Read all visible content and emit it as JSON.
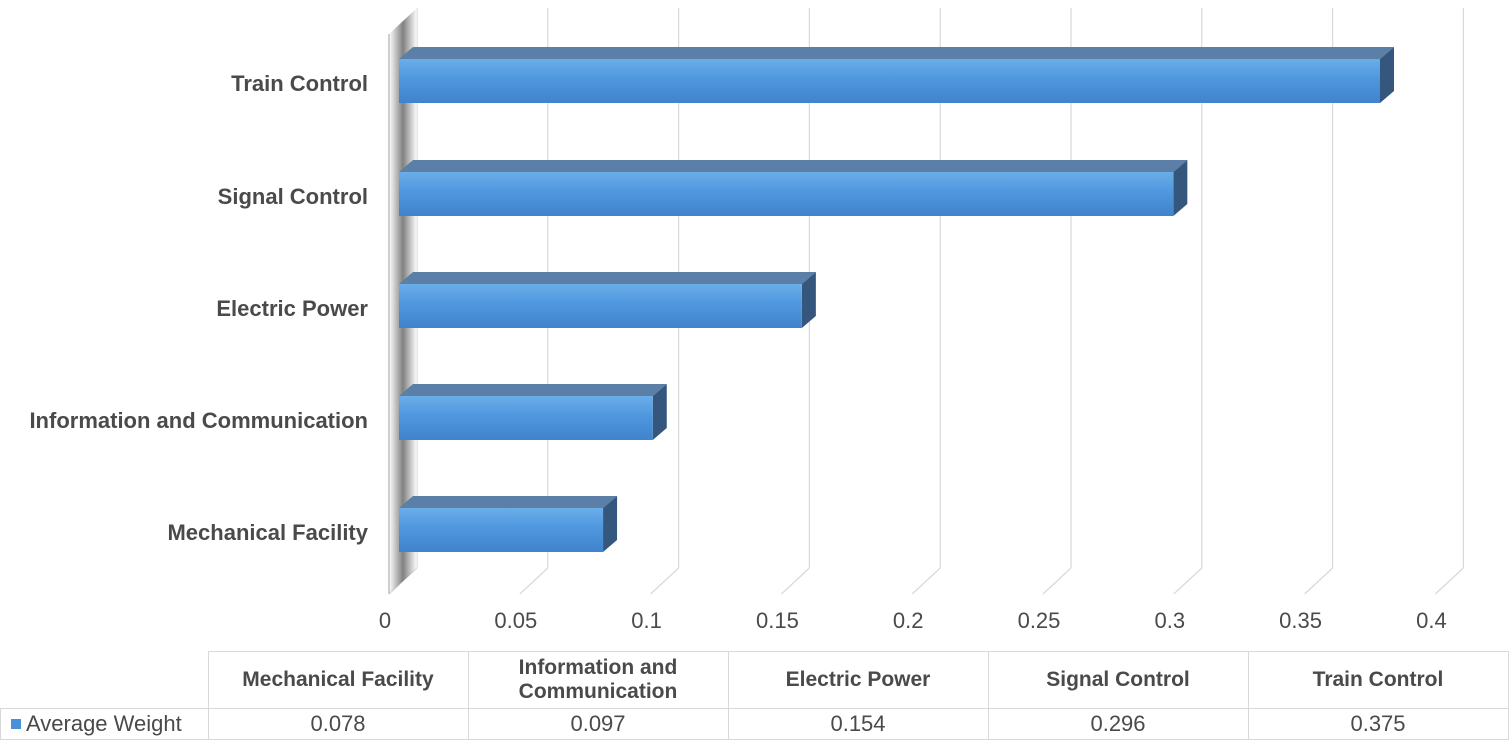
{
  "chart_data": {
    "type": "bar",
    "orientation": "horizontal",
    "three_d": true,
    "categories": [
      "Mechanical Facility",
      "Information and Communication",
      "Electric Power",
      "Signal Control",
      "Train Control"
    ],
    "series": [
      {
        "name": "Average Weight",
        "values": [
          0.078,
          0.097,
          0.154,
          0.296,
          0.375
        ],
        "color": "#4a90d9"
      }
    ],
    "value_labels": [
      "0.078",
      "0.097",
      "0.154",
      "0.296",
      "0.375"
    ],
    "xticks": [
      "0",
      "0.05",
      "0.1",
      "0.15",
      "0.2",
      "0.25",
      "0.3",
      "0.35",
      "0.4"
    ],
    "xlim": [
      0,
      0.4
    ],
    "grid": true,
    "data_table": true,
    "table_headers": [
      "Mechanical Facility",
      "Information and Communication",
      "Electric Power",
      "Signal Control",
      "Train Control"
    ]
  }
}
